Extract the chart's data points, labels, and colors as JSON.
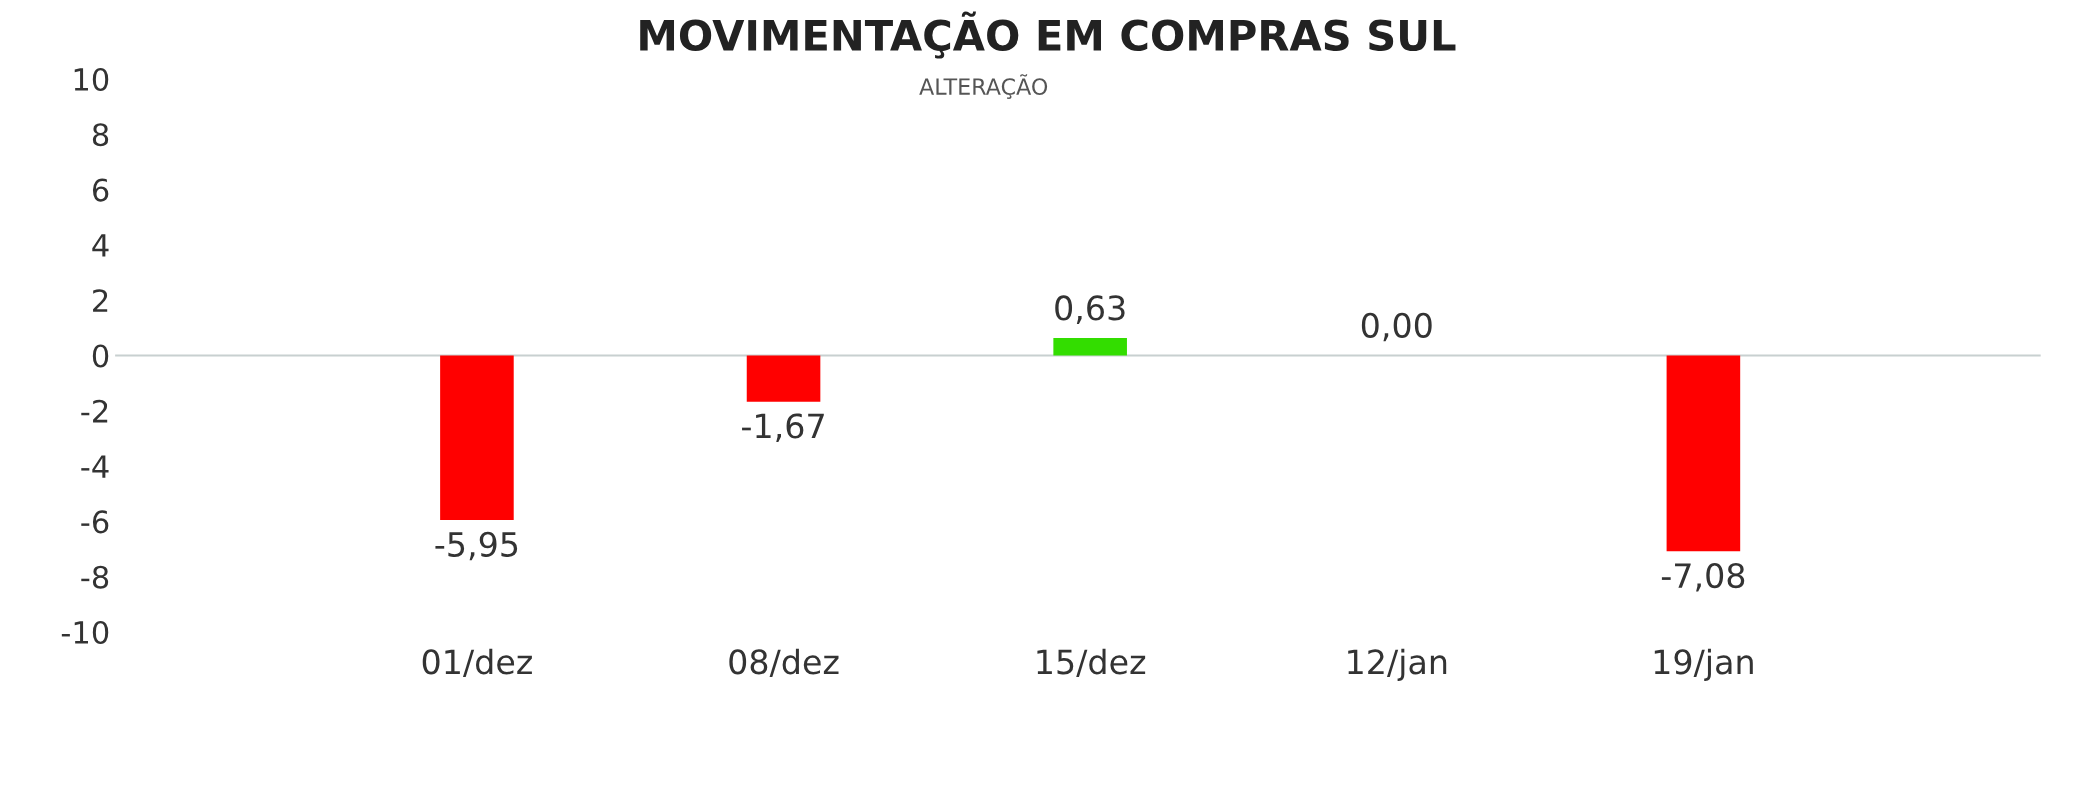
{
  "chart_data": {
    "type": "bar",
    "title": "MOVIMENTAÇÃO EM COMPRAS SUL",
    "subtitle": "ALTERAÇÃO",
    "categories": [
      "01/dez",
      "08/dez",
      "15/dez",
      "12/jan",
      "19/jan"
    ],
    "values": [
      -5.95,
      -1.67,
      0.63,
      0.0,
      -7.08
    ],
    "colors": [
      "#ff0000",
      "#ff0000",
      "#33dd00",
      "#33dd00",
      "#ff0000"
    ],
    "value_labels": [
      "-5,95",
      "-1,67",
      "0,63",
      "0,00",
      "-7,08"
    ],
    "ylim": [
      -10,
      10
    ],
    "yticks": [
      -10,
      -8,
      -6,
      -4,
      -2,
      0,
      2,
      4,
      6,
      8,
      10
    ],
    "ref_lines": [
      {
        "axis": "y",
        "value": 0,
        "color": "#c8d0d0"
      }
    ],
    "grid": false,
    "legend": false
  }
}
